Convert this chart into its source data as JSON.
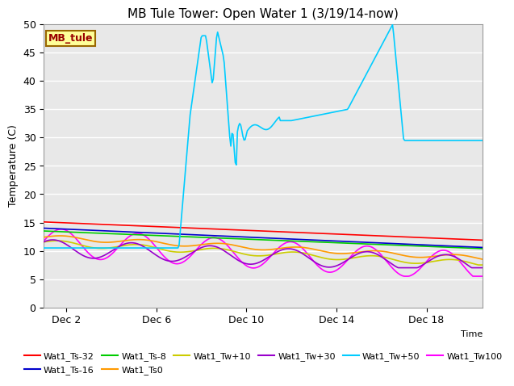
{
  "title": "MB Tule Tower: Open Water 1 (3/19/14-now)",
  "ylabel": "Temperature (C)",
  "xlabel": "Time",
  "xlim": [
    0,
    19.5
  ],
  "ylim": [
    0,
    50
  ],
  "yticks": [
    0,
    5,
    10,
    15,
    20,
    25,
    30,
    35,
    40,
    45,
    50
  ],
  "xtick_labels": [
    "Dec 2",
    "Dec 6",
    "Dec 10",
    "Dec 14",
    "Dec 18"
  ],
  "xtick_pos": [
    1,
    5,
    9,
    13,
    17
  ],
  "bg_color": "#e8e8e8",
  "legend_box_color": "#ffff99",
  "legend_box_border": "#996600",
  "legend_box_text": "MB_tule",
  "legend_box_text_color": "#990000",
  "series": {
    "Wat1_Ts-32": {
      "color": "#ff0000",
      "lw": 1.2
    },
    "Wat1_Ts-16": {
      "color": "#0000cc",
      "lw": 1.2
    },
    "Wat1_Ts-8": {
      "color": "#00cc00",
      "lw": 1.2
    },
    "Wat1_Ts0": {
      "color": "#ff9900",
      "lw": 1.2
    },
    "Wat1_Tw+10": {
      "color": "#cccc00",
      "lw": 1.2
    },
    "Wat1_Tw+30": {
      "color": "#9900cc",
      "lw": 1.2
    },
    "Wat1_Tw+50": {
      "color": "#00ccff",
      "lw": 1.2
    },
    "Wat1_Tw100": {
      "color": "#ff00ff",
      "lw": 1.2
    }
  },
  "legend_order": [
    "Wat1_Ts-32",
    "Wat1_Ts-16",
    "Wat1_Ts-8",
    "Wat1_Ts0",
    "Wat1_Tw+10",
    "Wat1_Tw+30",
    "Wat1_Tw+50",
    "Wat1_Tw100"
  ]
}
